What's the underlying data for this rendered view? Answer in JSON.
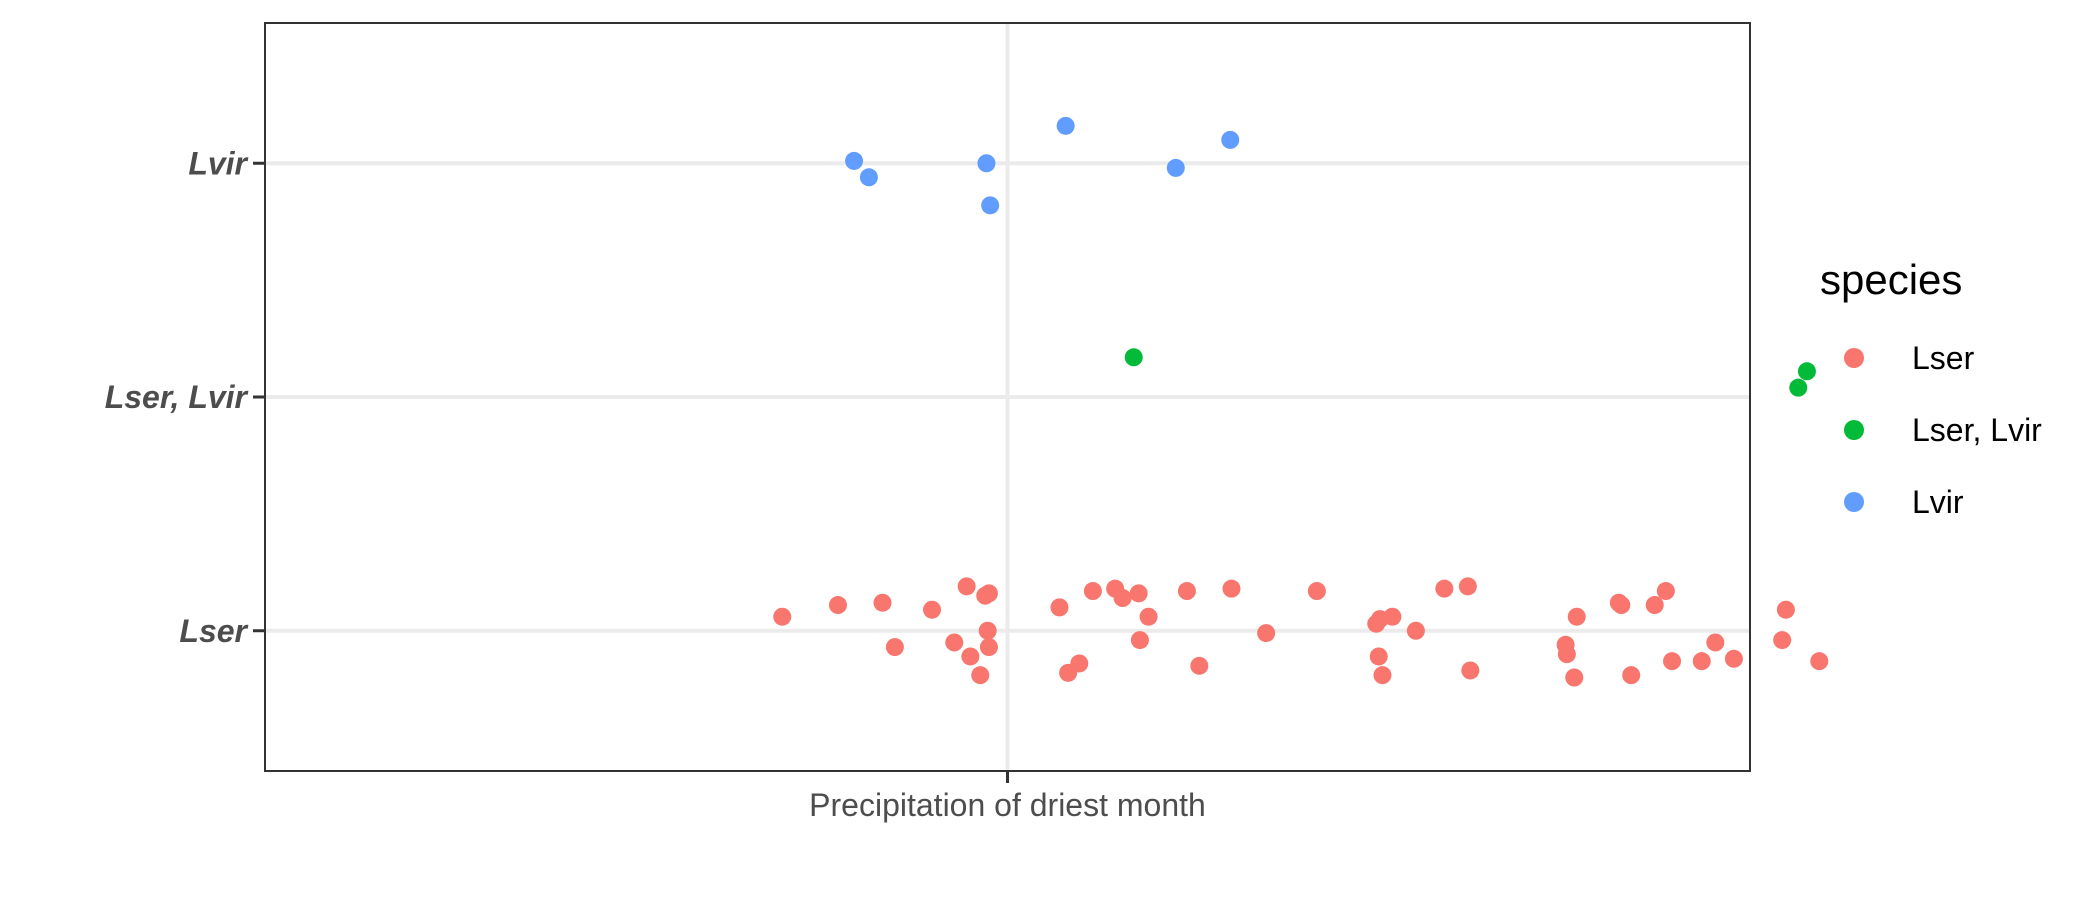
{
  "chart_data": {
    "type": "scatter",
    "title": "",
    "xlabel": "",
    "ylabel": "",
    "x_categories": [
      "Precipitation of driest month"
    ],
    "y_categories": [
      "Lser",
      "Lser, Lvir",
      "Lvir"
    ],
    "jitter": {
      "x": 0.4,
      "y": 0.2
    },
    "grid": true,
    "legend": {
      "title": "species",
      "position": "right",
      "entries": [
        {
          "label": "Lser",
          "color": "#F8766D"
        },
        {
          "label": "Lser, Lvir",
          "color": "#00BA38"
        },
        {
          "label": "Lvir",
          "color": "#619CFF"
        }
      ]
    },
    "series": [
      {
        "name": "Lser",
        "color": "#F8766D",
        "points": [
          [
            0.818,
            1.06
          ],
          [
            0.863,
            1.11
          ],
          [
            0.899,
            1.12
          ],
          [
            0.939,
            1.09
          ],
          [
            0.967,
            1.19
          ],
          [
            0.982,
            1.15
          ],
          [
            0.985,
            1.16
          ],
          [
            0.909,
            0.93
          ],
          [
            0.957,
            0.95
          ],
          [
            0.97,
            0.89
          ],
          [
            0.978,
            0.81
          ],
          [
            0.985,
            0.93
          ],
          [
            0.984,
            1.0
          ],
          [
            1.042,
            1.1
          ],
          [
            1.069,
            1.17
          ],
          [
            1.087,
            1.18
          ],
          [
            1.093,
            1.14
          ],
          [
            1.106,
            1.16
          ],
          [
            1.145,
            1.17
          ],
          [
            1.114,
            1.06
          ],
          [
            1.107,
            0.96
          ],
          [
            1.155,
            0.85
          ],
          [
            1.181,
            1.18
          ],
          [
            1.209,
            0.99
          ],
          [
            1.049,
            0.82
          ],
          [
            1.058,
            0.86
          ],
          [
            1.25,
            1.17
          ],
          [
            1.298,
            1.03
          ],
          [
            1.301,
            1.05
          ],
          [
            1.3,
            0.89
          ],
          [
            1.303,
            0.81
          ],
          [
            1.311,
            1.06
          ],
          [
            1.33,
            1.0
          ],
          [
            1.353,
            1.18
          ],
          [
            1.372,
            1.19
          ],
          [
            1.374,
            0.83
          ],
          [
            1.451,
            0.94
          ],
          [
            1.452,
            0.9
          ],
          [
            1.458,
            0.8
          ],
          [
            1.46,
            1.06
          ],
          [
            1.494,
            1.12
          ],
          [
            1.496,
            1.11
          ],
          [
            1.504,
            0.81
          ],
          [
            1.523,
            1.11
          ],
          [
            1.532,
            1.17
          ],
          [
            1.537,
            0.87
          ],
          [
            1.561,
            0.87
          ],
          [
            1.572,
            0.95
          ],
          [
            1.587,
            0.88
          ],
          [
            1.626,
            0.96
          ],
          [
            1.629,
            1.09
          ],
          [
            1.656,
            0.87
          ]
        ]
      },
      {
        "name": "Lser, Lvir",
        "color": "#00BA38",
        "points": [
          [
            1.102,
            2.17
          ],
          [
            1.639,
            2.04
          ],
          [
            1.646,
            2.11
          ]
        ]
      },
      {
        "name": "Lvir",
        "color": "#619CFF",
        "points": [
          [
            0.876,
            3.01
          ],
          [
            0.888,
            2.94
          ],
          [
            0.983,
            3.0
          ],
          [
            0.986,
            2.82
          ],
          [
            1.047,
            3.16
          ],
          [
            1.136,
            2.98
          ],
          [
            1.18,
            3.1
          ]
        ]
      }
    ]
  }
}
